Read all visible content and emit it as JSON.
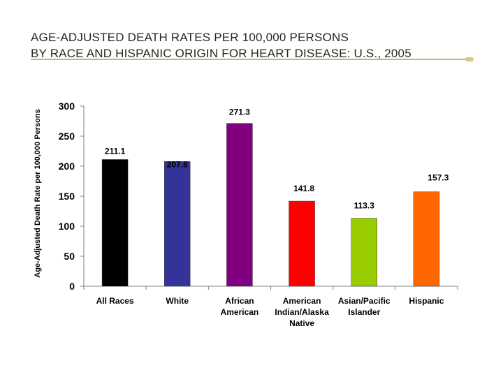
{
  "title": {
    "line1": "AGE-ADJUSTED DEATH RATES PER 100,000 PERSONS",
    "line2": "BY RACE AND HISPANIC ORIGIN FOR HEART DISEASE: U.S., 2005"
  },
  "chart_data": {
    "type": "bar",
    "ylabel": "Age-Adjusted Death Rate per 100,000 Persons",
    "xlabel": "",
    "ylim": [
      0,
      300
    ],
    "yticks": [
      "0",
      "50",
      "100",
      "150",
      "200",
      "250",
      "300"
    ],
    "categories": [
      [
        "All Races"
      ],
      [
        "White"
      ],
      [
        "African",
        "American"
      ],
      [
        "American",
        "Indian/Alaska",
        "Native"
      ],
      [
        "Asian/Pacific",
        "Islander"
      ],
      [
        "Hispanic"
      ]
    ],
    "values": [
      211.1,
      207.8,
      271.3,
      141.8,
      113.3,
      157.3
    ],
    "labels": [
      "211.1",
      "207.8",
      "271.3",
      "141.8",
      "113.3",
      "157.3"
    ],
    "colors": [
      "#000000",
      "#333399",
      "#800080",
      "#ff0000",
      "#99cc00",
      "#ff6600"
    ],
    "grid": false,
    "legend": "none"
  }
}
